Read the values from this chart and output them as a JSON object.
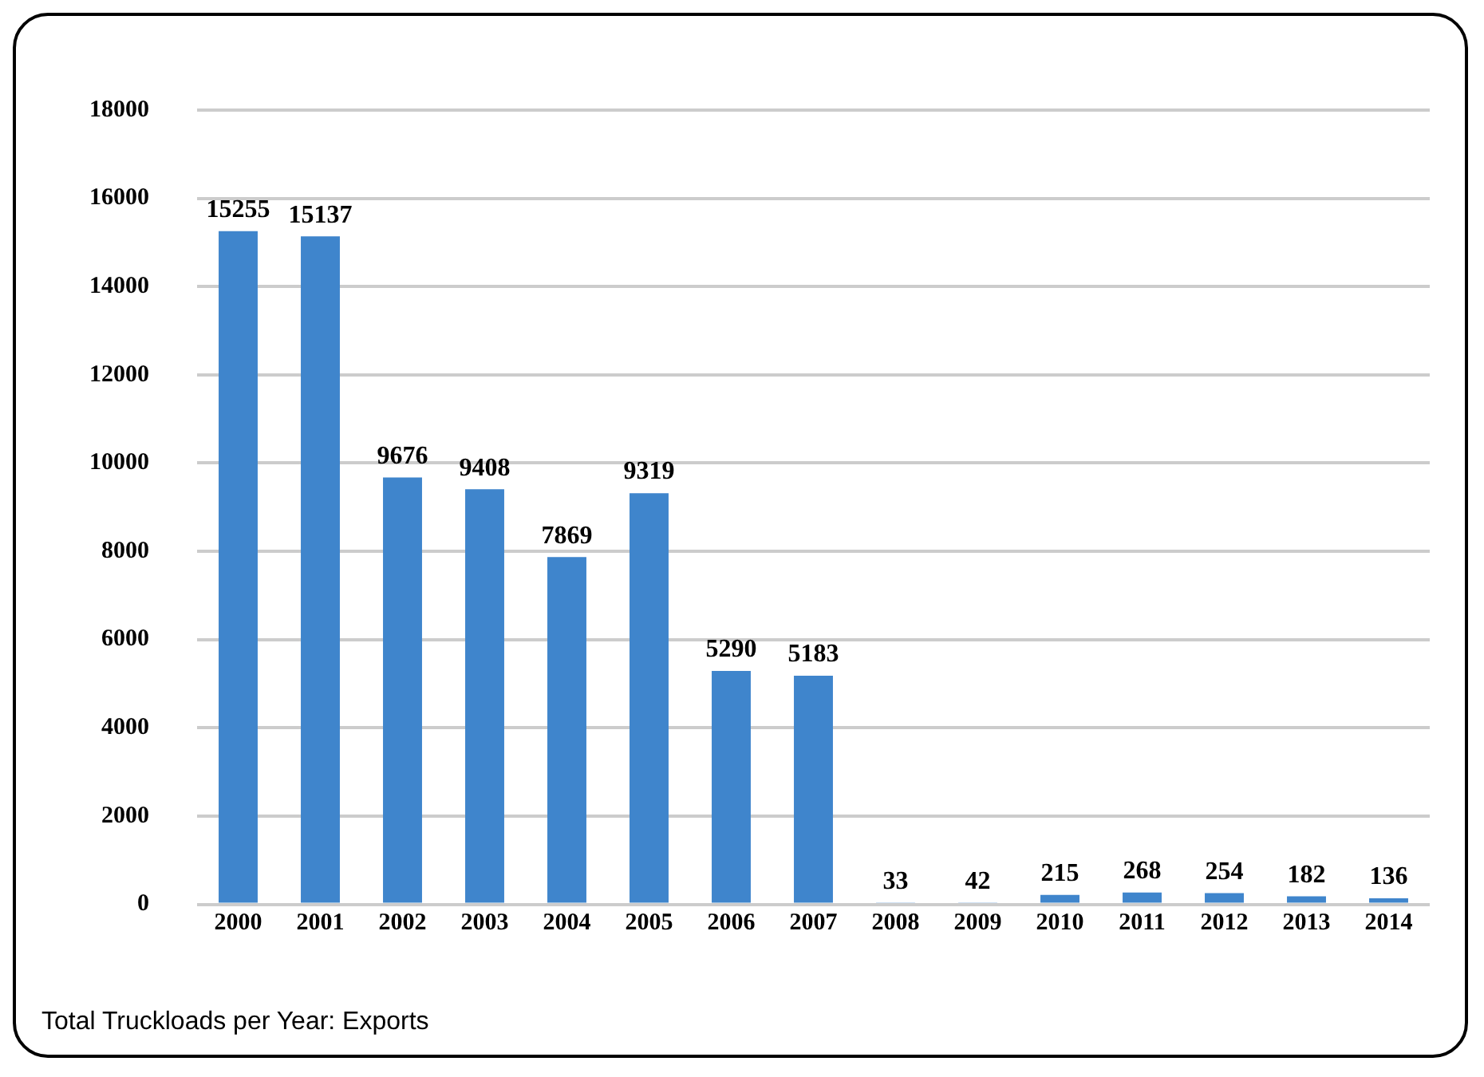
{
  "chart_data": {
    "type": "bar",
    "title": "Total Truckloads per Year: Exports",
    "categories": [
      "2000",
      "2001",
      "2002",
      "2003",
      "2004",
      "2005",
      "2006",
      "2007",
      "2008",
      "2009",
      "2010",
      "2011",
      "2012",
      "2013",
      "2014"
    ],
    "values": [
      15255,
      15137,
      9676,
      9408,
      7869,
      9319,
      5290,
      5183,
      33,
      42,
      215,
      268,
      254,
      182,
      136
    ],
    "color": "#3f85cc",
    "ylim": [
      0,
      18000
    ],
    "yticks": [
      0,
      2000,
      4000,
      6000,
      8000,
      10000,
      12000,
      14000,
      16000,
      18000
    ],
    "grid": "y",
    "data_labels": true
  }
}
